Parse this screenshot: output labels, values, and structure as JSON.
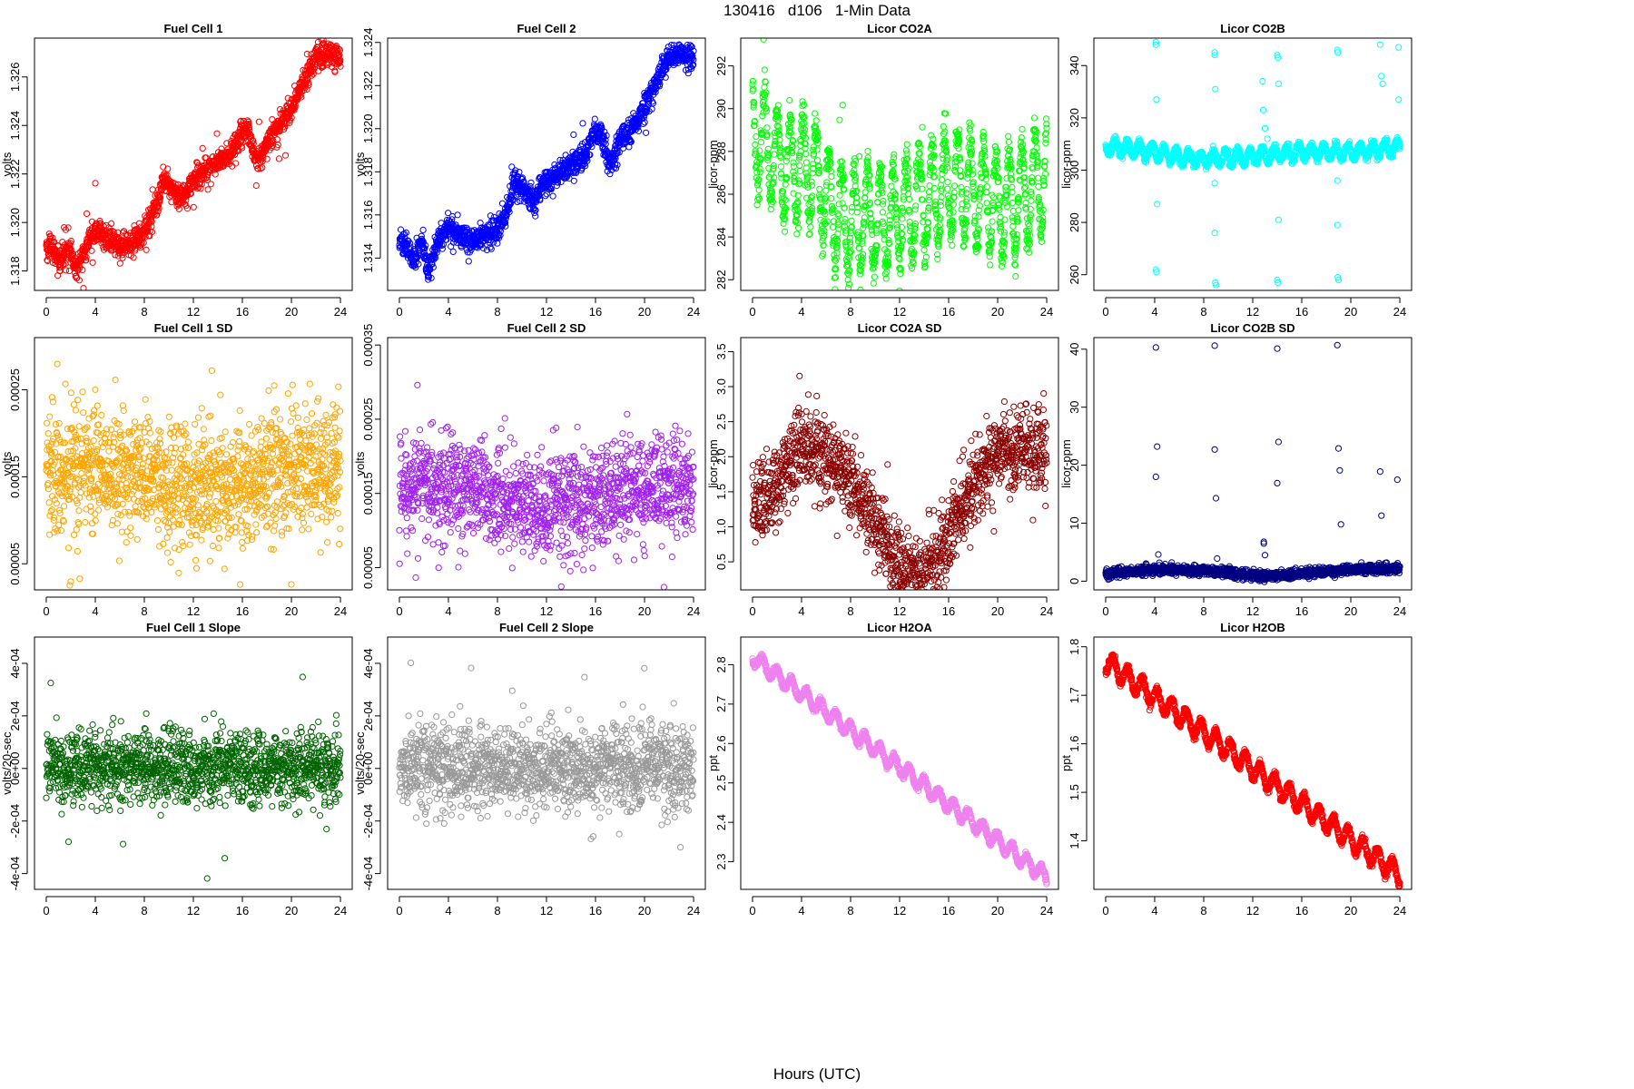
{
  "header": {
    "title": "130416   d106   1-Min Data",
    "x_axis_label": "Hours (UTC)"
  },
  "chart_data": [
    {
      "id": "fc1",
      "type": "scatter",
      "title": "Fuel Cell 1",
      "ylabel": "volts",
      "color": "#ff0000",
      "xlim": [
        0,
        24
      ],
      "xticks": [
        "0",
        "4",
        "8",
        "12",
        "16",
        "20",
        "24"
      ],
      "ylim": [
        1.3172,
        1.3276
      ],
      "yticks": [
        1.318,
        1.32,
        1.322,
        1.324,
        1.326
      ],
      "ytick_labels": [
        "1.318",
        "1.320",
        "1.322",
        "1.324",
        "1.326"
      ],
      "anchors_x": [
        0,
        0.5,
        1.2,
        1.8,
        2.4,
        3,
        4,
        5,
        6,
        7,
        8,
        9,
        9.5,
        10,
        11,
        11.5,
        12,
        13,
        14,
        15,
        16,
        16.5,
        17,
        17.5,
        18,
        19,
        20,
        21,
        22,
        23,
        24
      ],
      "anchors_y": [
        1.319,
        1.3189,
        1.3183,
        1.3192,
        1.318,
        1.3187,
        1.3198,
        1.3193,
        1.319,
        1.3192,
        1.3196,
        1.3207,
        1.3217,
        1.3215,
        1.321,
        1.3213,
        1.3218,
        1.3222,
        1.3225,
        1.3228,
        1.3237,
        1.3238,
        1.3227,
        1.3226,
        1.3234,
        1.324,
        1.3247,
        1.3258,
        1.3268,
        1.327,
        1.3268
      ],
      "spread": 0.00025,
      "outlier_rate": 0.01,
      "outlier_mag": 0.001,
      "count": 1440
    },
    {
      "id": "fc2",
      "type": "scatter",
      "title": "Fuel Cell 2",
      "ylabel": "volts",
      "color": "#0000ff",
      "xlim": [
        0,
        24
      ],
      "xticks": [
        "0",
        "4",
        "8",
        "12",
        "16",
        "20",
        "24"
      ],
      "ylim": [
        1.3125,
        1.3242
      ],
      "yticks": [
        1.314,
        1.316,
        1.318,
        1.32,
        1.322,
        1.324
      ],
      "ytick_labels": [
        "1.314",
        "1.316",
        "1.318",
        "1.320",
        "1.322",
        "1.324"
      ],
      "anchors_x": [
        0,
        0.5,
        1.2,
        1.8,
        2.4,
        3,
        4,
        5,
        6,
        7,
        8,
        8.7,
        9.3,
        10,
        11,
        11.5,
        12,
        13,
        14,
        15,
        16,
        16.5,
        17,
        17.5,
        18,
        19,
        20,
        21,
        22,
        23,
        24
      ],
      "anchors_y": [
        1.3148,
        1.3146,
        1.3138,
        1.3149,
        1.3134,
        1.3145,
        1.3155,
        1.315,
        1.3147,
        1.3151,
        1.3153,
        1.316,
        1.3174,
        1.3172,
        1.3167,
        1.3172,
        1.3176,
        1.318,
        1.3183,
        1.3187,
        1.3198,
        1.3197,
        1.3185,
        1.3185,
        1.3195,
        1.32,
        1.321,
        1.3222,
        1.3234,
        1.3235,
        1.3233
      ],
      "spread": 0.00028,
      "outlier_rate": 0.01,
      "outlier_mag": 0.001,
      "count": 1440
    },
    {
      "id": "co2a",
      "type": "scatter",
      "title": "Licor CO2A",
      "ylabel": "licor-ppm",
      "color": "#00ff00",
      "xlim": [
        0,
        24
      ],
      "xticks": [
        "0",
        "4",
        "8",
        "12",
        "16",
        "20",
        "24"
      ],
      "ylim": [
        281.5,
        293.3
      ],
      "yticks": [
        282,
        284,
        286,
        288,
        290,
        292
      ],
      "ytick_labels": [
        "282",
        "284",
        "286",
        "288",
        "290",
        "292"
      ],
      "anchors_x": [
        0,
        1,
        2,
        3,
        4,
        5,
        6,
        7,
        8,
        9,
        10,
        11,
        12,
        13,
        14,
        15,
        16,
        17,
        18,
        19,
        20,
        21,
        22,
        23,
        24
      ],
      "anchors_y": [
        289.0,
        288.5,
        287.5,
        287.0,
        287.5,
        287.0,
        286.0,
        285.0,
        284.5,
        285.0,
        285.0,
        284.8,
        285.0,
        285.5,
        285.5,
        286.0,
        286.5,
        286.5,
        286.0,
        286.0,
        285.5,
        285.5,
        286.0,
        286.5,
        287.0
      ],
      "osc_amp": 2.3,
      "osc_period": 1.05,
      "spread": 0.5,
      "outlier_rate": 0.005,
      "outlier_mag": 2.5,
      "count": 1440
    },
    {
      "id": "co2b",
      "type": "scatter",
      "title": "Licor CO2B",
      "ylabel": "licor-ppm",
      "color": "#00ffff",
      "xlim": [
        0,
        24
      ],
      "xticks": [
        "0",
        "4",
        "8",
        "12",
        "16",
        "20",
        "24"
      ],
      "ylim": [
        254,
        350.5
      ],
      "yticks": [
        260,
        280,
        300,
        320,
        340
      ],
      "ytick_labels": [
        "260",
        "280",
        "300",
        "320",
        "340"
      ],
      "anchors_x": [
        0,
        2,
        4,
        6,
        8,
        10,
        12,
        14,
        16,
        18,
        20,
        22,
        24
      ],
      "anchors_y": [
        309,
        308,
        307,
        305,
        304,
        305,
        305,
        306,
        307,
        307,
        307,
        308,
        309
      ],
      "osc_amp": 2.5,
      "osc_period": 1.0,
      "spread": 0.8,
      "outlier_rate": 0.0,
      "outlier_mag": 0,
      "count": 1440,
      "spikes": [
        [
          4.1,
          349
        ],
        [
          4.1,
          348
        ],
        [
          4.15,
          327
        ],
        [
          4.2,
          287
        ],
        [
          4.1,
          262
        ],
        [
          4.15,
          261
        ],
        [
          8.9,
          345
        ],
        [
          8.9,
          344
        ],
        [
          8.95,
          331
        ],
        [
          8.9,
          295
        ],
        [
          8.9,
          276
        ],
        [
          8.95,
          257
        ],
        [
          9.0,
          256
        ],
        [
          12.8,
          334
        ],
        [
          12.85,
          323
        ],
        [
          13.0,
          316
        ],
        [
          13.2,
          312
        ],
        [
          14.0,
          344
        ],
        [
          14.05,
          343
        ],
        [
          14.1,
          333
        ],
        [
          14.1,
          281
        ],
        [
          14.0,
          258
        ],
        [
          14.05,
          257
        ],
        [
          18.9,
          346
        ],
        [
          18.95,
          345
        ],
        [
          18.9,
          296
        ],
        [
          18.9,
          279
        ],
        [
          18.95,
          259
        ],
        [
          19.0,
          258
        ],
        [
          22.4,
          348
        ],
        [
          22.5,
          336
        ],
        [
          22.6,
          333
        ],
        [
          23.9,
          347
        ],
        [
          23.9,
          327
        ]
      ]
    },
    {
      "id": "fc1sd",
      "type": "scatter",
      "title": "Fuel Cell 1 SD",
      "ylabel": "volts",
      "color": "#ffa500",
      "xlim": [
        0,
        24
      ],
      "xticks": [
        "0",
        "4",
        "8",
        "12",
        "16",
        "20",
        "24"
      ],
      "ylim": [
        2e-05,
        0.00031
      ],
      "yticks": [
        5e-05,
        0.00015,
        0.00025
      ],
      "ytick_labels": [
        "0.00005",
        "0.00015",
        "0.00025"
      ],
      "anchors_x": [
        0,
        4,
        8,
        12,
        16,
        20,
        24
      ],
      "anchors_y": [
        0.00016,
        0.00016,
        0.00015,
        0.00013,
        0.00014,
        0.00016,
        0.00016
      ],
      "spread": 3.5e-05,
      "outlier_rate": 0.008,
      "outlier_mag": 9e-05,
      "count": 1440
    },
    {
      "id": "fc2sd",
      "type": "scatter",
      "title": "Fuel Cell 2 SD",
      "ylabel": "volts",
      "color": "#a020f0",
      "xlim": [
        0,
        24
      ],
      "xticks": [
        "0",
        "4",
        "8",
        "12",
        "16",
        "20",
        "24"
      ],
      "ylim": [
        2e-05,
        0.00036
      ],
      "yticks": [
        5e-05,
        0.00015,
        0.00025,
        0.00035
      ],
      "ytick_labels": [
        "0.00005",
        "0.00015",
        "0.00025",
        "0.00035"
      ],
      "anchors_x": [
        0,
        4,
        8,
        12,
        16,
        20,
        24
      ],
      "anchors_y": [
        0.00016,
        0.00016,
        0.00015,
        0.00013,
        0.00014,
        0.00016,
        0.00016
      ],
      "spread": 3.5e-05,
      "outlier_rate": 0.008,
      "outlier_mag": 0.0001,
      "count": 1440
    },
    {
      "id": "co2asd",
      "type": "scatter",
      "title": "Licor CO2A SD",
      "ylabel": "licor-ppm",
      "color": "#8b0000",
      "xlim": [
        0,
        24
      ],
      "xticks": [
        "0",
        "4",
        "8",
        "12",
        "16",
        "20",
        "24"
      ],
      "ylim": [
        0.1,
        3.7
      ],
      "yticks": [
        0.5,
        1.0,
        1.5,
        2.0,
        2.5,
        3.0,
        3.5
      ],
      "ytick_labels": [
        "0.5",
        "1.0",
        "1.5",
        "2.0",
        "2.5",
        "3.0",
        "3.5"
      ],
      "anchors_x": [
        0,
        2,
        4,
        6,
        8,
        9,
        10,
        11,
        12,
        13,
        14,
        15,
        16,
        17,
        18,
        20,
        22,
        24
      ],
      "anchors_y": [
        1.2,
        1.6,
        2.2,
        2.0,
        1.7,
        1.4,
        1.1,
        0.8,
        0.45,
        0.3,
        0.3,
        0.45,
        0.9,
        1.3,
        1.6,
        2.0,
        2.1,
        2.0
      ],
      "spread": 0.3,
      "outlier_rate": 0.005,
      "outlier_mag": 0.6,
      "count": 1440
    },
    {
      "id": "co2bsd",
      "type": "scatter",
      "title": "Licor CO2B SD",
      "ylabel": "licor-ppm",
      "color": "#000080",
      "xlim": [
        0,
        24
      ],
      "xticks": [
        "0",
        "4",
        "8",
        "12",
        "16",
        "20",
        "24"
      ],
      "ylim": [
        -1.5,
        42
      ],
      "yticks": [
        0,
        10,
        20,
        30,
        40
      ],
      "ytick_labels": [
        "0",
        "10",
        "20",
        "30",
        "40"
      ],
      "anchors_x": [
        0,
        4,
        8,
        10,
        12,
        14,
        16,
        18,
        20,
        24
      ],
      "anchors_y": [
        1.2,
        2.0,
        1.8,
        1.5,
        0.9,
        0.9,
        1.4,
        1.6,
        2.0,
        2.2
      ],
      "spread": 0.4,
      "outlier_rate": 0.0,
      "outlier_mag": 0,
      "count": 1440,
      "spikes": [
        [
          4.1,
          40.3
        ],
        [
          4.1,
          18.0
        ],
        [
          4.2,
          23.2
        ],
        [
          4.3,
          4.6
        ],
        [
          8.9,
          40.6
        ],
        [
          8.9,
          22.7
        ],
        [
          9.0,
          14.3
        ],
        [
          9.1,
          3.9
        ],
        [
          12.9,
          6.8
        ],
        [
          12.9,
          6.5
        ],
        [
          13.0,
          4.5
        ],
        [
          14.0,
          40.1
        ],
        [
          14.0,
          16.9
        ],
        [
          14.1,
          24.0
        ],
        [
          18.9,
          40.7
        ],
        [
          19.0,
          22.9
        ],
        [
          19.1,
          19.1
        ],
        [
          19.2,
          9.8
        ],
        [
          22.4,
          18.9
        ],
        [
          22.5,
          11.3
        ],
        [
          23.8,
          17.5
        ]
      ]
    },
    {
      "id": "fc1slope",
      "type": "scatter",
      "title": "Fuel Cell 1 Slope",
      "ylabel": "volts/20-sec",
      "color": "#006400",
      "xlim": [
        0,
        24
      ],
      "xticks": [
        "0",
        "4",
        "8",
        "12",
        "16",
        "20",
        "24"
      ],
      "ylim": [
        -0.00046,
        0.0005
      ],
      "yticks": [
        -0.0004,
        -0.0002,
        0,
        0.0002,
        0.0004
      ],
      "ytick_labels": [
        "-4e-04",
        "-2e-04",
        "0e+00",
        "2e-04",
        "4e-04"
      ],
      "anchors_x": [
        0,
        24
      ],
      "anchors_y": [
        0,
        0
      ],
      "spread": 7e-05,
      "outlier_rate": 0.01,
      "outlier_mag": 0.00022,
      "count": 1440
    },
    {
      "id": "fc2slope",
      "type": "scatter",
      "title": "Fuel Cell 2 Slope",
      "ylabel": "volts/20-sec",
      "color": "#999999",
      "xlim": [
        0,
        24
      ],
      "xticks": [
        "0",
        "4",
        "8",
        "12",
        "16",
        "20",
        "24"
      ],
      "ylim": [
        -0.00046,
        0.0005
      ],
      "yticks": [
        -0.0004,
        -0.0002,
        0,
        0.0002,
        0.0004
      ],
      "ytick_labels": [
        "-4e-04",
        "-2e-04",
        "0e+00",
        "2e-04",
        "4e-04"
      ],
      "anchors_x": [
        0,
        24
      ],
      "anchors_y": [
        0,
        0
      ],
      "spread": 8e-05,
      "outlier_rate": 0.012,
      "outlier_mag": 0.00024,
      "count": 1440
    },
    {
      "id": "h2oa",
      "type": "scatter",
      "title": "Licor H2OA",
      "ylabel": "ppt",
      "color": "#ee82ee",
      "xlim": [
        0,
        24
      ],
      "xticks": [
        "0",
        "4",
        "8",
        "12",
        "16",
        "20",
        "24"
      ],
      "ylim": [
        2.23,
        2.87
      ],
      "yticks": [
        2.3,
        2.4,
        2.5,
        2.6,
        2.7,
        2.8
      ],
      "ytick_labels": [
        "2.3",
        "2.4",
        "2.5",
        "2.6",
        "2.7",
        "2.8"
      ],
      "anchors_x": [
        0,
        24
      ],
      "anchors_y": [
        2.82,
        2.26
      ],
      "osc_amp": 0.018,
      "osc_period": 1.2,
      "spread": 0.004,
      "outlier_rate": 0.0,
      "outlier_mag": 0,
      "count": 1440
    },
    {
      "id": "h2ob",
      "type": "scatter",
      "title": "Licor H2OB",
      "ylabel": "ppt",
      "color": "#ff0000",
      "xlim": [
        0,
        24
      ],
      "xticks": [
        "0",
        "4",
        "8",
        "12",
        "16",
        "20",
        "24"
      ],
      "ylim": [
        1.3,
        1.82
      ],
      "yticks": [
        1.4,
        1.5,
        1.6,
        1.7,
        1.8
      ],
      "ytick_labels": [
        "1.4",
        "1.5",
        "1.6",
        "1.7",
        "1.8"
      ],
      "anchors_x": [
        0,
        24
      ],
      "anchors_y": [
        1.77,
        1.33
      ],
      "osc_amp": 0.02,
      "osc_period": 1.2,
      "spread": 0.004,
      "outlier_rate": 0.0,
      "outlier_mag": 0,
      "count": 1440
    }
  ]
}
